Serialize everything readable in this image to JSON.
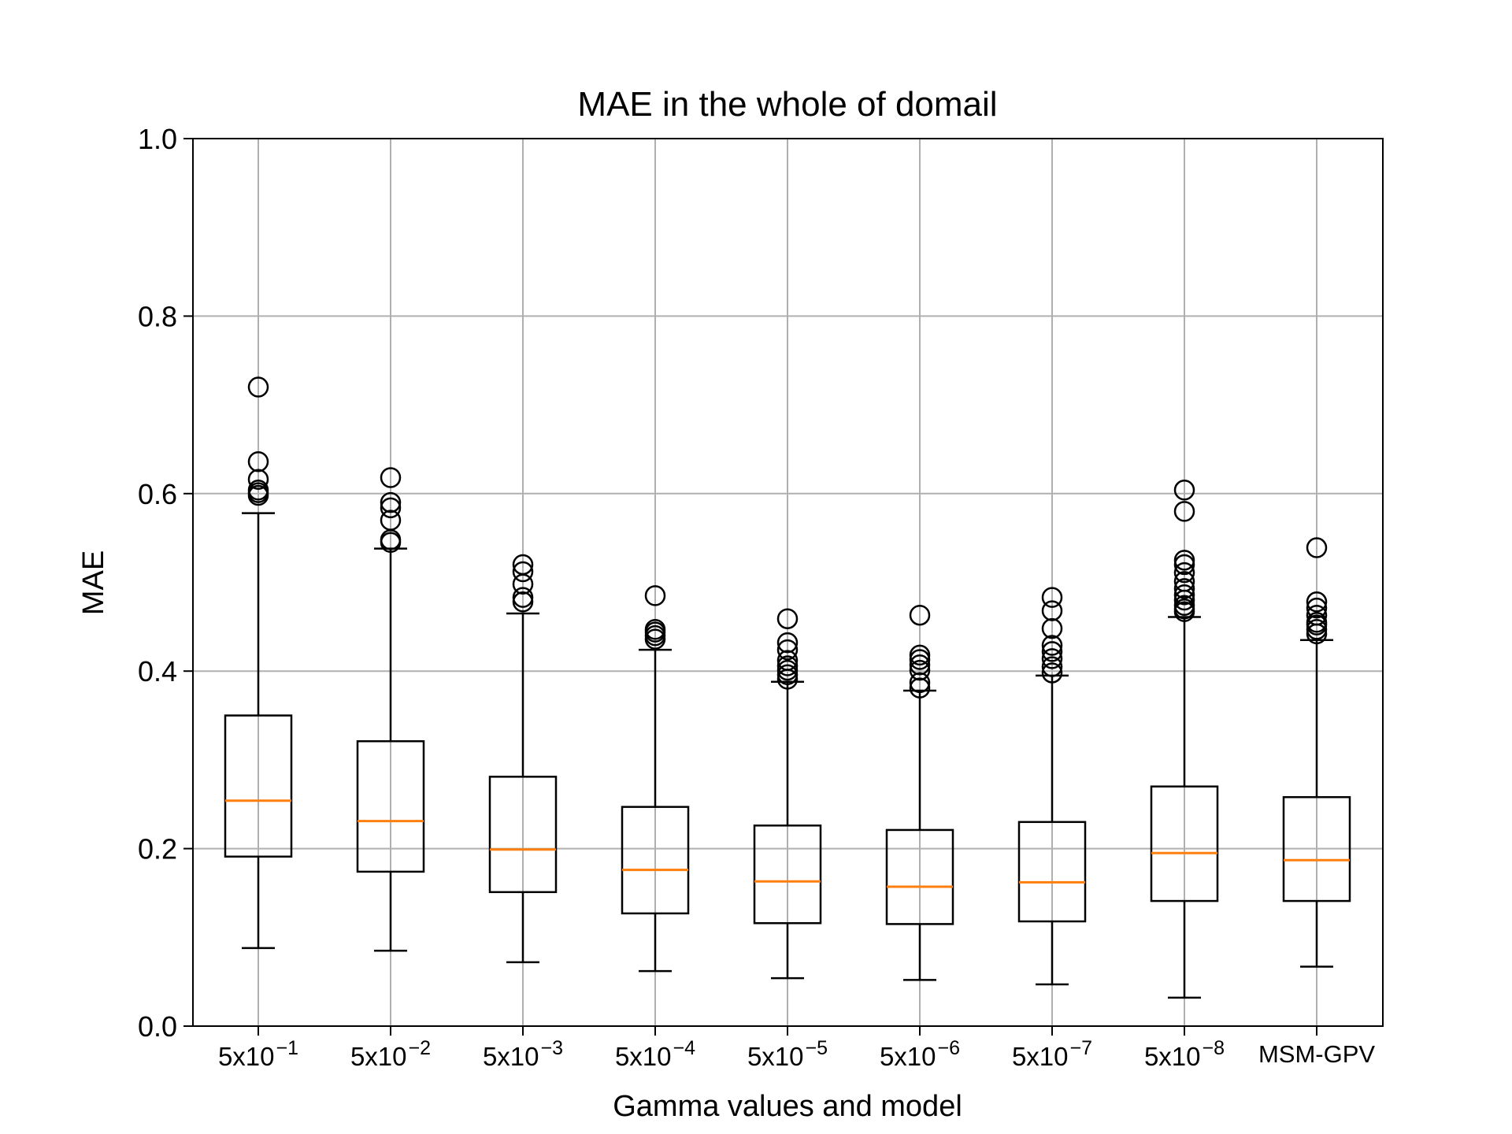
{
  "chart_data": {
    "type": "box",
    "title": "MAE in the whole of domail",
    "xlabel": "Gamma values and model",
    "ylabel": "MAE",
    "ylim": [
      0.0,
      1.0
    ],
    "yticks": [
      "0.0",
      "0.2",
      "0.4",
      "0.6",
      "0.8",
      "1.0"
    ],
    "grid": true,
    "colors": {
      "box": "#000000",
      "median": "#ff7f0e",
      "grid": "#b0b0b0"
    },
    "categories": [
      {
        "base": "5x10",
        "exp": "−1",
        "label": "5x10^-1"
      },
      {
        "base": "5x10",
        "exp": "−2",
        "label": "5x10^-2"
      },
      {
        "base": "5x10",
        "exp": "−3",
        "label": "5x10^-3"
      },
      {
        "base": "5x10",
        "exp": "−4",
        "label": "5x10^-4"
      },
      {
        "base": "5x10",
        "exp": "−5",
        "label": "5x10^-5"
      },
      {
        "base": "5x10",
        "exp": "−6",
        "label": "5x10^-6"
      },
      {
        "base": "5x10",
        "exp": "−7",
        "label": "5x10^-7"
      },
      {
        "base": "5x10",
        "exp": "−8",
        "label": "5x10^-8"
      },
      {
        "base": "MSM-GPV",
        "exp": "",
        "label": "MSM-GPV"
      }
    ],
    "boxes": [
      {
        "whislo": 0.088,
        "q1": 0.191,
        "med": 0.254,
        "q3": 0.35,
        "whishi": 0.578,
        "fliers": [
          0.598,
          0.601,
          0.604,
          0.616,
          0.636,
          0.72
        ]
      },
      {
        "whislo": 0.085,
        "q1": 0.174,
        "med": 0.231,
        "q3": 0.321,
        "whishi": 0.538,
        "fliers": [
          0.545,
          0.548,
          0.57,
          0.584,
          0.59,
          0.618
        ]
      },
      {
        "whislo": 0.072,
        "q1": 0.151,
        "med": 0.199,
        "q3": 0.281,
        "whishi": 0.465,
        "fliers": [
          0.478,
          0.483,
          0.498,
          0.512,
          0.52
        ]
      },
      {
        "whislo": 0.062,
        "q1": 0.127,
        "med": 0.176,
        "q3": 0.247,
        "whishi": 0.424,
        "fliers": [
          0.436,
          0.44,
          0.444,
          0.447,
          0.485
        ]
      },
      {
        "whislo": 0.054,
        "q1": 0.116,
        "med": 0.163,
        "q3": 0.226,
        "whishi": 0.388,
        "fliers": [
          0.391,
          0.396,
          0.401,
          0.406,
          0.412,
          0.424,
          0.432,
          0.459
        ]
      },
      {
        "whislo": 0.052,
        "q1": 0.115,
        "med": 0.157,
        "q3": 0.221,
        "whishi": 0.378,
        "fliers": [
          0.381,
          0.387,
          0.401,
          0.407,
          0.413,
          0.418,
          0.463
        ]
      },
      {
        "whislo": 0.047,
        "q1": 0.118,
        "med": 0.162,
        "q3": 0.23,
        "whishi": 0.395,
        "fliers": [
          0.398,
          0.405,
          0.414,
          0.422,
          0.429,
          0.448,
          0.468,
          0.483
        ]
      },
      {
        "whislo": 0.032,
        "q1": 0.141,
        "med": 0.195,
        "q3": 0.27,
        "whishi": 0.461,
        "fliers": [
          0.467,
          0.47,
          0.474,
          0.48,
          0.486,
          0.493,
          0.501,
          0.511,
          0.52,
          0.525,
          0.58,
          0.604
        ]
      },
      {
        "whislo": 0.067,
        "q1": 0.141,
        "med": 0.187,
        "q3": 0.258,
        "whishi": 0.435,
        "fliers": [
          0.442,
          0.447,
          0.452,
          0.455,
          0.463,
          0.471,
          0.478,
          0.539
        ]
      }
    ]
  }
}
